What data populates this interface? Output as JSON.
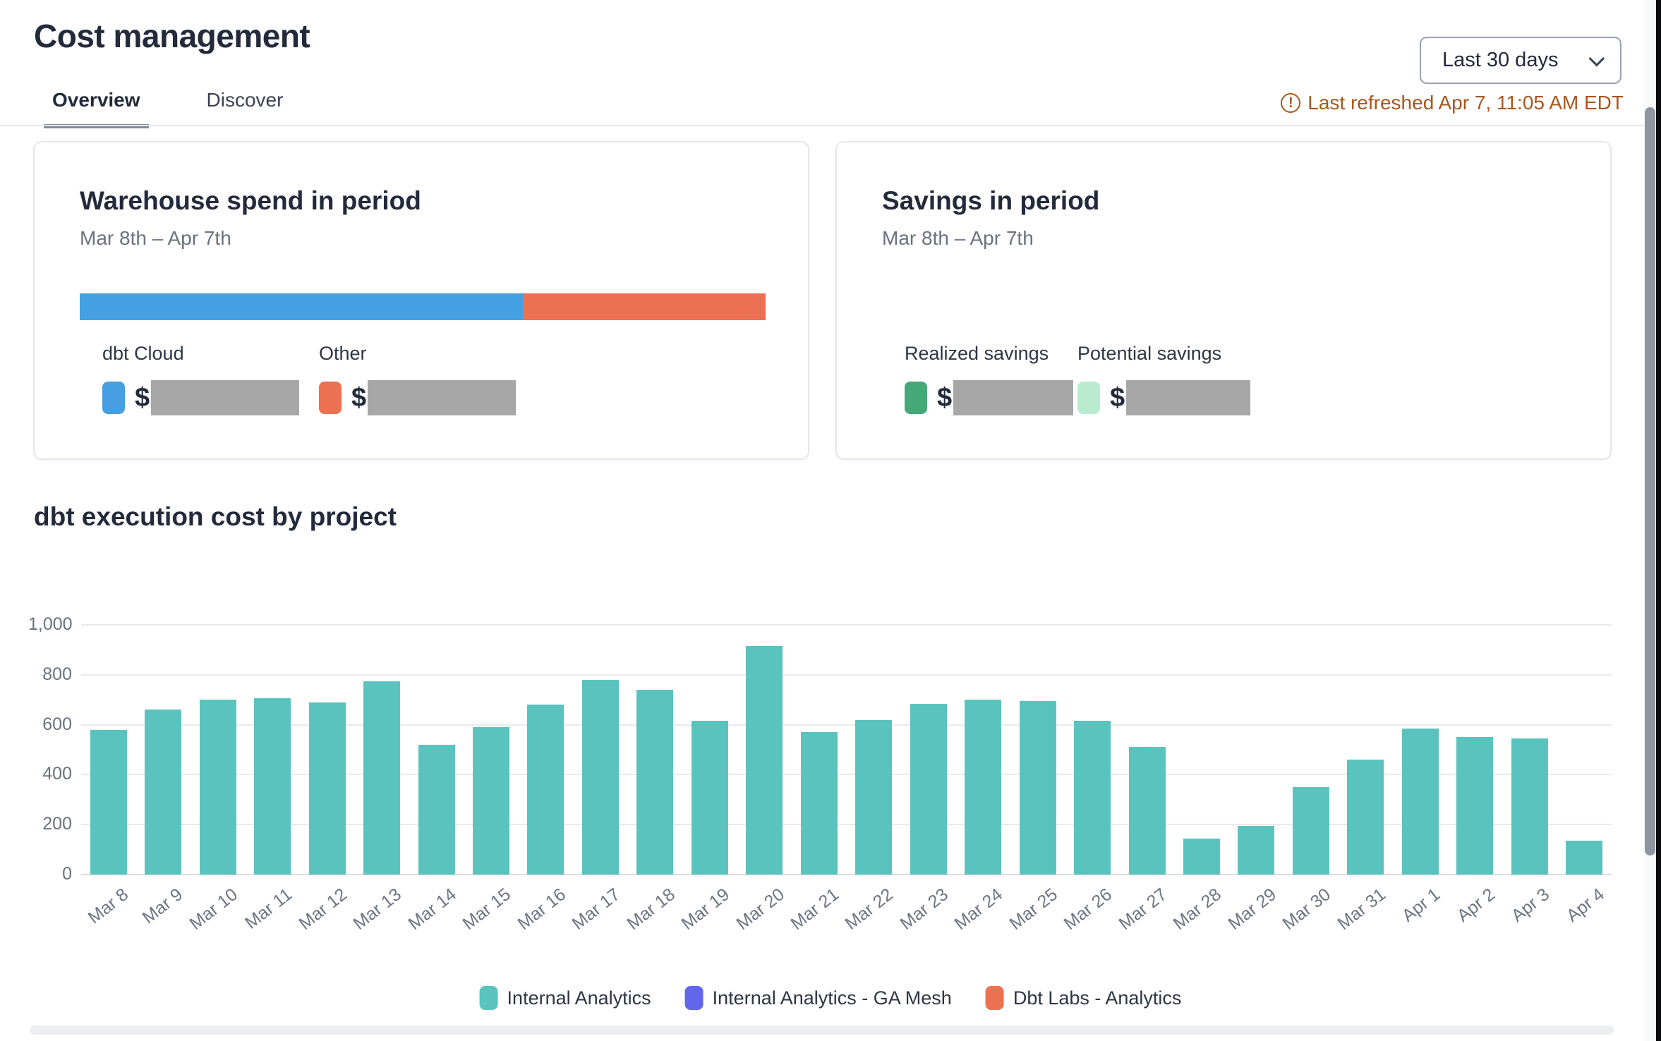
{
  "header": {
    "title": "Cost management",
    "tabs": [
      {
        "label": "Overview",
        "active": true
      },
      {
        "label": "Discover",
        "active": false
      }
    ],
    "period_select": {
      "value": "Last 30 days"
    },
    "refresh_status": "Last refreshed Apr 7, 11:05 AM EDT",
    "refresh_color": "#A9571F"
  },
  "cards": {
    "warehouse_spend": {
      "title": "Warehouse spend in period",
      "subtitle": "Mar 8th – Apr 7th",
      "bar_segments": [
        {
          "label": "dbt Cloud",
          "color": "#459FE0",
          "width_pct": 64.6
        },
        {
          "label": "Other",
          "color": "#EC7052",
          "width_pct": 35.4
        }
      ],
      "metrics": [
        {
          "label": "dbt Cloud",
          "swatch_color": "#459FE0",
          "currency": "$",
          "value_hidden": true
        },
        {
          "label": "Other",
          "swatch_color": "#EC7052",
          "currency": "$",
          "value_hidden": true
        }
      ]
    },
    "savings": {
      "title": "Savings in period",
      "subtitle": "Mar 8th – Apr 7th",
      "metrics": [
        {
          "label": "Realized savings",
          "swatch_color": "#44A877",
          "currency": "$",
          "value_hidden": true
        },
        {
          "label": "Potential savings",
          "swatch_color": "#B9EBD1",
          "currency": "$",
          "value_hidden": true
        }
      ]
    }
  },
  "chart_data": {
    "type": "bar",
    "title": "dbt execution cost by project",
    "categories": [
      "Mar 8",
      "Mar 9",
      "Mar 10",
      "Mar 11",
      "Mar 12",
      "Mar 13",
      "Mar 14",
      "Mar 15",
      "Mar 16",
      "Mar 17",
      "Mar 18",
      "Mar 19",
      "Mar 20",
      "Mar 21",
      "Mar 22",
      "Mar 23",
      "Mar 24",
      "Mar 25",
      "Mar 26",
      "Mar 27",
      "Mar 28",
      "Mar 29",
      "Mar 30",
      "Mar 31",
      "Apr 1",
      "Apr 2",
      "Apr 3",
      "Apr 4"
    ],
    "series": [
      {
        "name": "Internal Analytics",
        "color": "#5BC3BE",
        "values": [
          580,
          660,
          700,
          705,
          690,
          775,
          520,
          590,
          680,
          780,
          740,
          615,
          915,
          570,
          620,
          685,
          700,
          695,
          615,
          510,
          145,
          195,
          350,
          460,
          585,
          550,
          545,
          135
        ]
      }
    ],
    "legend": [
      {
        "name": "Internal Analytics",
        "color": "#5BC3BE"
      },
      {
        "name": "Internal Analytics - GA Mesh",
        "color": "#6166EC"
      },
      {
        "name": "Dbt Labs - Analytics",
        "color": "#EC7052"
      }
    ],
    "xlabel": "",
    "ylabel": "",
    "ylim": [
      0,
      1000
    ],
    "yticks": [
      0,
      200,
      400,
      600,
      800,
      1000
    ],
    "ytick_labels": [
      "0",
      "200",
      "400",
      "600",
      "800",
      "1,000"
    ],
    "grid": true,
    "legend_position": "bottom"
  }
}
